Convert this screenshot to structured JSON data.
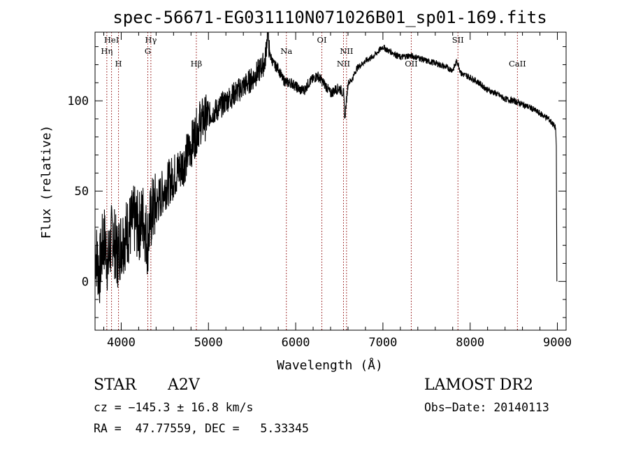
{
  "chart_data": {
    "type": "line",
    "title": "spec-56671-EG031110N071026B01_sp01-169.fits",
    "xlabel": "Wavelength (Å)",
    "ylabel": "Flux (relative)",
    "xlim": [
      3700,
      9100
    ],
    "ylim": [
      -27,
      138
    ],
    "x_ticks": [
      4000,
      5000,
      6000,
      7000,
      8000,
      9000
    ],
    "y_ticks": [
      0,
      50,
      100
    ],
    "grid": false,
    "line_color": "#000000",
    "marker_color": "#8b0000",
    "series": [
      {
        "x": [
          3700,
          3750,
          3800,
          3850,
          3900,
          3950,
          4000,
          4050,
          4100,
          4150,
          4200,
          4250,
          4300,
          4350,
          4400,
          4500,
          4600,
          4700,
          4800,
          4900,
          5000,
          5100,
          5200,
          5300,
          5400,
          5500,
          5600,
          5650,
          5680,
          5700,
          5750,
          5800,
          5850,
          5900,
          5950,
          6000,
          6050,
          6100,
          6150,
          6200,
          6250,
          6300,
          6350,
          6400,
          6450,
          6500,
          6550,
          6563,
          6600,
          6650,
          6700,
          6800,
          6900,
          7000,
          7050,
          7100,
          7200,
          7300,
          7400,
          7500,
          7600,
          7700,
          7800,
          7850,
          7900,
          8000,
          8100,
          8200,
          8300,
          8400,
          8500,
          8600,
          8700,
          8800,
          8900,
          8950,
          8980,
          9000
        ],
        "y": [
          18,
          5,
          25,
          10,
          28,
          14,
          22,
          26,
          30,
          34,
          30,
          36,
          22,
          38,
          42,
          52,
          58,
          64,
          75,
          88,
          92,
          95,
          100,
          104,
          108,
          112,
          118,
          122,
          140,
          126,
          120,
          118,
          112,
          110,
          110,
          108,
          106,
          106,
          110,
          112,
          114,
          111,
          108,
          104,
          106,
          107,
          104,
          90,
          110,
          112,
          118,
          122,
          125,
          130,
          128,
          127,
          124,
          125,
          124,
          122,
          121,
          119,
          117,
          122,
          115,
          113,
          110,
          106,
          104,
          101,
          100,
          98,
          96,
          93,
          90,
          87,
          85,
          0
        ]
      }
    ],
    "spectral_lines": [
      {
        "label": "HeI",
        "wl": 3889,
        "row": 0
      },
      {
        "label": "Hη",
        "wl": 3835,
        "row": 1
      },
      {
        "label": "H",
        "wl": 3969,
        "row": 2
      },
      {
        "label": "Hγ",
        "wl": 4340,
        "row": 0
      },
      {
        "label": "G",
        "wl": 4305,
        "row": 1
      },
      {
        "label": "Hβ",
        "wl": 4861,
        "row": 2
      },
      {
        "label": "Na",
        "wl": 5893,
        "row": 1
      },
      {
        "label": "OI",
        "wl": 6300,
        "row": 0
      },
      {
        "label": "NII",
        "wl": 6583,
        "row": 1
      },
      {
        "label": "NII",
        "wl": 6548,
        "row": 2
      },
      {
        "label": "OII",
        "wl": 7325,
        "row": 2
      },
      {
        "label": "SII",
        "wl": 7860,
        "row": 0
      },
      {
        "label": "CaII",
        "wl": 8542,
        "row": 2
      }
    ]
  },
  "info": {
    "object_class": "STAR",
    "subclass": "A2V",
    "survey": "LAMOST DR2",
    "velocity": "cz = −145.3 ± 16.8 km/s",
    "obs_date": "Obs−Date: 20140113",
    "coords": "RA =  47.77559, DEC =   5.33345"
  }
}
